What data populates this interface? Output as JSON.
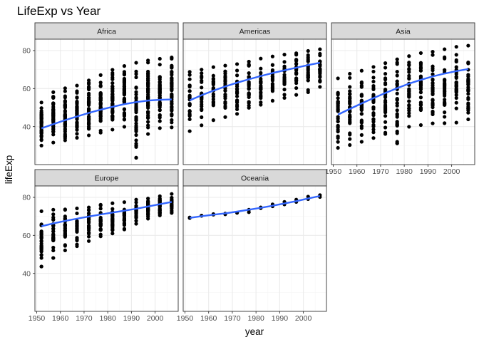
{
  "chart_data": {
    "type": "scatter",
    "title": "LifeExp vs Year",
    "xlabel": "year",
    "ylabel": "lifeExp",
    "x_ticks": [
      1950,
      1960,
      1970,
      1980,
      1990,
      2000
    ],
    "y_ticks": [
      40,
      60,
      80
    ],
    "xlim": [
      1949.25,
      2009.75
    ],
    "ylim": [
      20.0,
      86.0
    ],
    "x_years": [
      1952,
      1957,
      1962,
      1967,
      1972,
      1977,
      1982,
      1987,
      1992,
      1997,
      2002,
      2007
    ],
    "grid": true,
    "facets": [
      {
        "name": "Africa",
        "points_min": [
          30.0,
          31.6,
          32.8,
          34.1,
          35.4,
          36.8,
          38.4,
          39.9,
          23.6,
          36.1,
          39.2,
          39.6
        ],
        "points_max": [
          52.7,
          58.1,
          60.2,
          61.6,
          64.3,
          67.1,
          69.9,
          71.9,
          73.6,
          74.8,
          75.7,
          76.4
        ],
        "points_count": 52,
        "smooth": [
          39.1,
          41.3,
          43.4,
          45.3,
          47.2,
          48.9,
          50.4,
          51.8,
          52.9,
          53.7,
          54.1,
          54.3
        ],
        "outliers": [
          {
            "x": 1992,
            "y": 23.6
          }
        ]
      },
      {
        "name": "Americas",
        "points_min": [
          37.6,
          40.7,
          43.4,
          45.0,
          46.7,
          49.9,
          51.5,
          53.6,
          55.1,
          56.7,
          58.1,
          60.9
        ],
        "points_max": [
          68.8,
          70.0,
          71.3,
          72.1,
          72.9,
          74.2,
          75.8,
          76.9,
          77.9,
          78.6,
          79.8,
          80.7
        ],
        "points_count": 25,
        "smooth": [
          53.8,
          56.5,
          58.9,
          61.1,
          63.1,
          64.9,
          66.6,
          68.2,
          69.6,
          71.0,
          72.4,
          73.6
        ],
        "outliers": []
      },
      {
        "name": "Asia",
        "points_min": [
          28.8,
          30.3,
          32.0,
          34.0,
          36.1,
          31.2,
          39.9,
          40.8,
          41.7,
          41.8,
          42.1,
          43.8
        ],
        "points_max": [
          65.4,
          67.8,
          69.4,
          71.4,
          73.4,
          75.4,
          77.1,
          78.7,
          79.4,
          80.7,
          82.0,
          82.6
        ],
        "points_count": 33,
        "smooth": [
          46.3,
          49.3,
          52.2,
          55.0,
          57.7,
          60.2,
          62.6,
          64.6,
          66.4,
          67.9,
          69.2,
          70.3
        ],
        "outliers": [
          {
            "x": 1977,
            "y": 31.2
          }
        ]
      },
      {
        "name": "Europe",
        "points_min": [
          43.6,
          48.1,
          52.1,
          54.3,
          57.0,
          59.5,
          61.0,
          63.1,
          66.1,
          68.8,
          70.5,
          71.8
        ],
        "points_max": [
          72.7,
          73.5,
          73.7,
          74.2,
          74.7,
          76.1,
          76.9,
          77.5,
          78.8,
          79.4,
          80.6,
          81.8
        ],
        "points_count": 30,
        "smooth": [
          64.8,
          66.3,
          67.6,
          68.8,
          69.9,
          71.0,
          72.0,
          73.0,
          74.0,
          75.2,
          76.4,
          77.6
        ],
        "outliers": [
          {
            "x": 1952,
            "y": 43.6
          },
          {
            "x": 1957,
            "y": 48.1
          }
        ]
      },
      {
        "name": "Oceania",
        "points_min": [
          69.1,
          70.3,
          70.9,
          71.1,
          71.9,
          72.2,
          74.3,
          75.3,
          76.3,
          77.6,
          79.1,
          80.2
        ],
        "points_max": [
          69.4,
          70.4,
          71.2,
          71.5,
          71.9,
          73.5,
          74.7,
          76.3,
          77.6,
          78.8,
          80.4,
          81.2
        ],
        "points_count": 2,
        "smooth": [
          69.2,
          70.1,
          70.9,
          71.6,
          72.5,
          73.5,
          74.5,
          75.6,
          76.8,
          78.0,
          79.4,
          80.7
        ],
        "outliers": []
      }
    ],
    "colors": {
      "point": "#000000",
      "smooth": "#3366ff",
      "strip_fill": "#d9d9d9",
      "panel_border": "#333333",
      "grid_major": "#ebebeb",
      "grid_minor": "#f5f5f5"
    }
  }
}
